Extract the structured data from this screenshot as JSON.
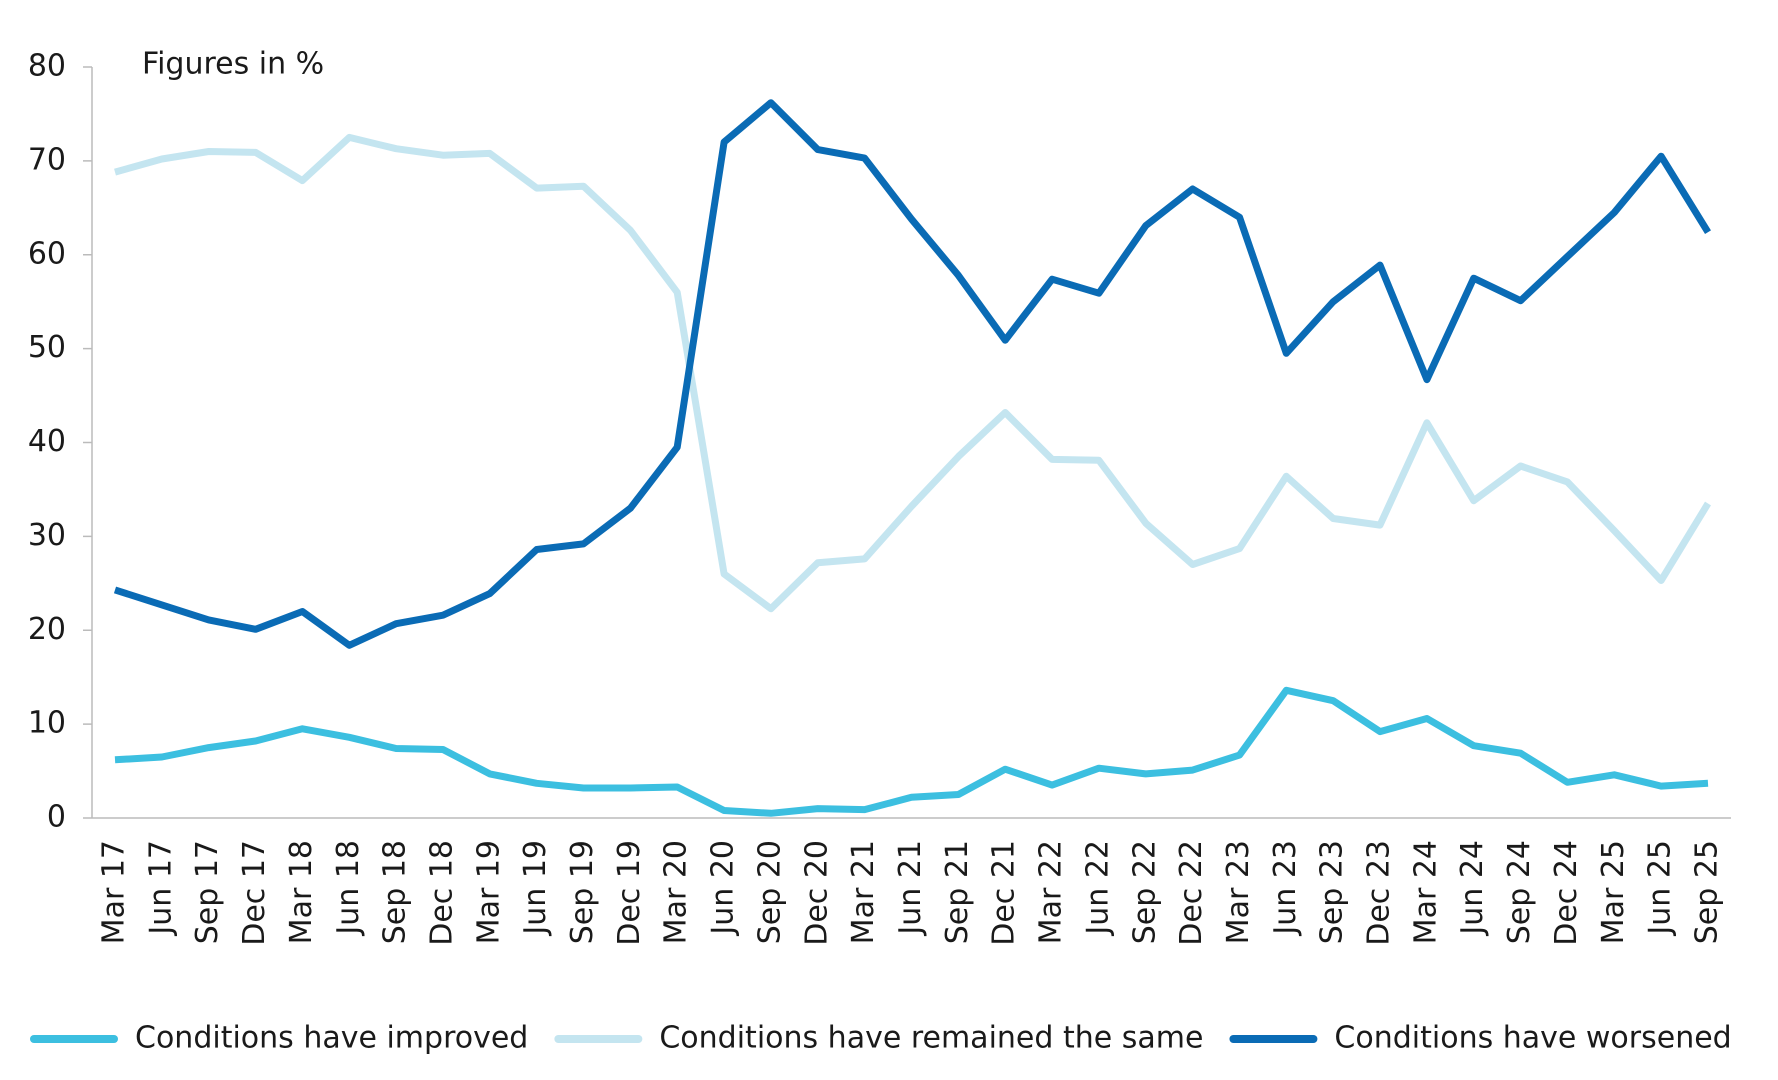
{
  "chart_data": {
    "type": "line",
    "annotation": "Figures in %",
    "categories": [
      "Mar 17",
      "Jun 17",
      "Sep 17",
      "Dec 17",
      "Mar 18",
      "Jun 18",
      "Sep 18",
      "Dec 18",
      "Mar 19",
      "Jun 19",
      "Sep 19",
      "Dec 19",
      "Mar 20",
      "Jun 20",
      "Sep 20",
      "Dec 20",
      "Mar 21",
      "Jun 21",
      "Sep 21",
      "Dec 21",
      "Mar 22",
      "Jun 22",
      "Sep 22",
      "Dec 22",
      "Mar 23",
      "Jun 23",
      "Sep 23",
      "Dec 23",
      "Mar 24",
      "Jun 24",
      "Sep 24",
      "Dec 24",
      "Mar 25",
      "Jun 25",
      "Sep 25"
    ],
    "series": [
      {
        "name": "Conditions have improved",
        "color": "#3cbfe0",
        "values": [
          6.2,
          6.5,
          7.5,
          8.2,
          9.5,
          8.6,
          7.4,
          7.3,
          4.7,
          3.7,
          3.2,
          3.2,
          3.3,
          0.8,
          0.5,
          1.0,
          0.9,
          2.2,
          2.5,
          5.2,
          3.5,
          5.3,
          4.7,
          5.1,
          6.7,
          13.6,
          12.5,
          9.2,
          10.6,
          7.7,
          6.9,
          3.8,
          4.6,
          3.4,
          3.7
        ]
      },
      {
        "name": "Conditions have remained the same",
        "color": "#c4e5f0",
        "values": [
          68.8,
          70.2,
          71.0,
          70.9,
          67.9,
          72.5,
          71.3,
          70.6,
          70.8,
          67.1,
          67.3,
          62.6,
          56.0,
          26.0,
          22.3,
          27.2,
          27.6,
          33.2,
          38.5,
          43.2,
          38.2,
          38.1,
          31.4,
          27.0,
          28.7,
          36.4,
          31.9,
          31.2,
          42.1,
          33.8,
          37.5,
          35.8,
          30.6,
          25.3,
          33.5
        ]
      },
      {
        "name": "Conditions have worsened",
        "color": "#0a6bb5",
        "values": [
          24.3,
          22.7,
          21.1,
          20.1,
          22.0,
          18.4,
          20.7,
          21.6,
          23.9,
          28.6,
          29.2,
          33.0,
          39.5,
          72.0,
          76.2,
          71.2,
          70.3,
          63.8,
          57.8,
          50.9,
          57.4,
          55.9,
          63.1,
          67.0,
          64.0,
          49.5,
          55.0,
          58.9,
          46.7,
          57.5,
          55.1,
          59.8,
          64.5,
          70.5,
          62.4
        ]
      }
    ],
    "ylim": [
      0,
      80
    ],
    "yticks": [
      0,
      10,
      20,
      30,
      40,
      50,
      60,
      70,
      80
    ],
    "legend": "bottom"
  }
}
